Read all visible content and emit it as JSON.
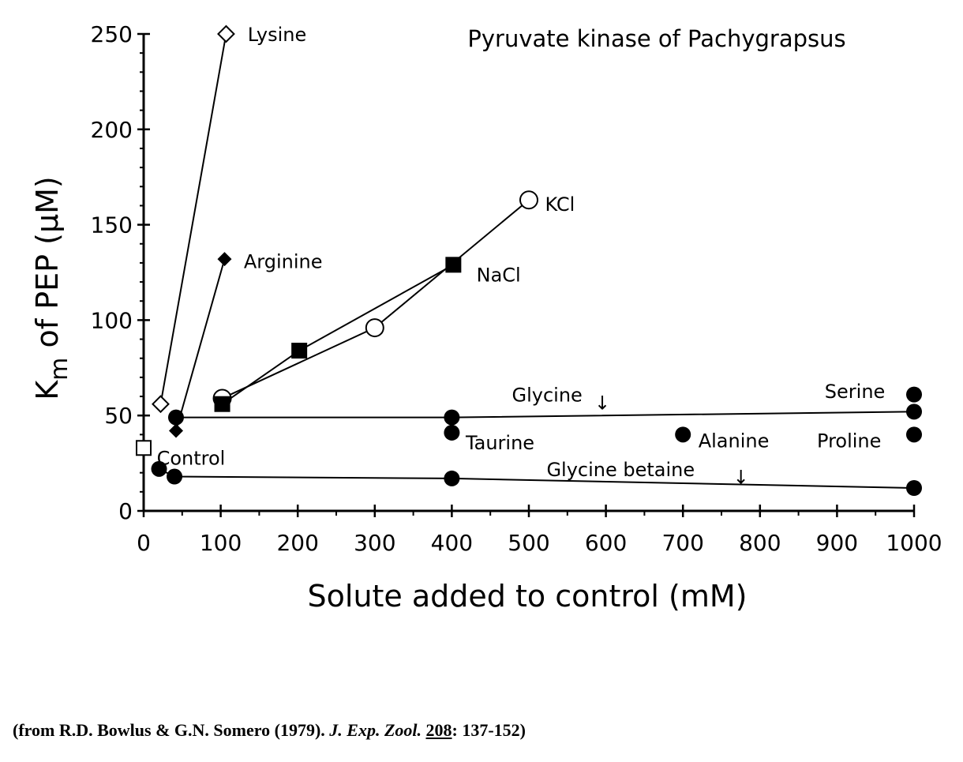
{
  "chart_data": {
    "type": "scatter",
    "title": "Pyruvate kinase of Pachygrapsus",
    "xlabel": "Solute added to control (mM)",
    "ylabel_main": "K",
    "ylabel_sub": "m",
    "ylabel_rest": " of PEP (μM)",
    "xlim": [
      0,
      1000
    ],
    "ylim": [
      0,
      250
    ],
    "x_ticks": [
      0,
      100,
      200,
      300,
      400,
      500,
      600,
      700,
      800,
      900,
      1000
    ],
    "y_ticks": [
      0,
      50,
      100,
      150,
      200,
      250
    ],
    "grid": false,
    "series": [
      {
        "name": "Control",
        "marker": "open-square",
        "points": [
          [
            0,
            33
          ]
        ]
      },
      {
        "name": "Lysine",
        "marker": "open-diamond",
        "points": [
          [
            22,
            56
          ],
          [
            107,
            250
          ]
        ]
      },
      {
        "name": "Arginine",
        "marker": "filled-diamond",
        "points": [
          [
            42,
            42
          ],
          [
            105,
            132
          ]
        ]
      },
      {
        "name": "KCl",
        "marker": "open-circle",
        "points": [
          [
            102,
            59
          ],
          [
            300,
            96
          ],
          [
            500,
            163
          ]
        ]
      },
      {
        "name": "NaCl",
        "marker": "filled-square",
        "points": [
          [
            102,
            56
          ],
          [
            202,
            84
          ],
          [
            402,
            129
          ]
        ]
      },
      {
        "name": "Glycine",
        "marker": "filled-circle",
        "points": [
          [
            42,
            49
          ],
          [
            400,
            49
          ],
          [
            1000,
            52
          ]
        ]
      },
      {
        "name": "Taurine",
        "marker": "filled-circle",
        "points": [
          [
            400,
            41
          ]
        ]
      },
      {
        "name": "Alanine",
        "marker": "filled-circle",
        "points": [
          [
            700,
            40
          ]
        ]
      },
      {
        "name": "Serine",
        "marker": "filled-circle",
        "points": [
          [
            1000,
            61
          ]
        ]
      },
      {
        "name": "Proline",
        "marker": "filled-circle",
        "points": [
          [
            1000,
            40
          ]
        ]
      },
      {
        "name": "Glycine betaine",
        "marker": "filled-circle",
        "points": [
          [
            20,
            22
          ],
          [
            40,
            18
          ],
          [
            400,
            17
          ],
          [
            1000,
            12
          ]
        ]
      }
    ],
    "annotations": [
      {
        "text": "Lysine",
        "x": 135,
        "y": 250
      },
      {
        "text": "Arginine",
        "x": 130,
        "y": 131
      },
      {
        "text": "KCl",
        "x": 521,
        "y": 161
      },
      {
        "text": "NaCl",
        "x": 432,
        "y": 124
      },
      {
        "text": "Glycine",
        "x": 478,
        "y": 61
      },
      {
        "text": "↓",
        "x": 585,
        "y": 57
      },
      {
        "text": "Serine",
        "x": 884,
        "y": 63
      },
      {
        "text": "Taurine",
        "x": 418,
        "y": 36
      },
      {
        "text": "Alanine",
        "x": 720,
        "y": 37
      },
      {
        "text": "Proline",
        "x": 874,
        "y": 37
      },
      {
        "text": "Control",
        "x": 17,
        "y": 28
      },
      {
        "text": "Glycine betaine",
        "x": 523,
        "y": 22
      },
      {
        "text": "↓",
        "x": 765,
        "y": 18
      }
    ]
  },
  "citation": {
    "prefix": "(from R.D. Bowlus & G.N. Somero (1979). ",
    "journal": "J. Exp. Zool.",
    "space": " ",
    "volume": "208",
    "suffix": ": 137-152)"
  }
}
